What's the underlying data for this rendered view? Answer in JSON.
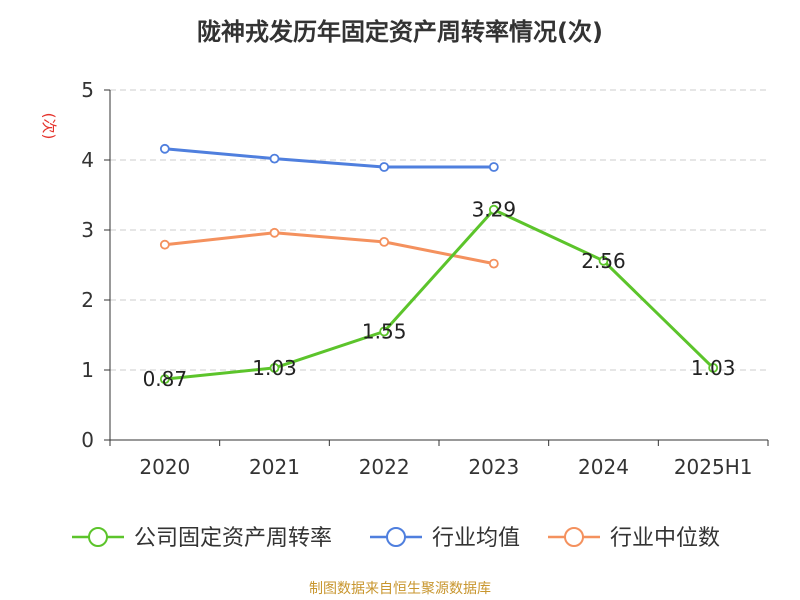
{
  "title": "陇神戎发历年固定资产周转率情况(次)",
  "source": "制图数据来自恒生聚源数据库",
  "colors": {
    "series_main": "#5cc42b",
    "series_avg": "#4f7fde",
    "series_median": "#f4915e",
    "ylabel": "#e5342d",
    "axis": "#333333",
    "grid": "#cccccc"
  },
  "chart_data": {
    "type": "line",
    "ylabel": "(次)",
    "ylim": [
      0,
      5
    ],
    "yticks": [
      "0",
      "1",
      "2",
      "3",
      "4",
      "5"
    ],
    "categories": [
      "2020",
      "2021",
      "2022",
      "2023",
      "2024",
      "2025H1"
    ],
    "grid": true,
    "legend_position": "bottom",
    "series": [
      {
        "name": "公司固定资产周转率",
        "values": [
          0.87,
          1.03,
          1.55,
          3.29,
          2.56,
          1.03
        ],
        "labels": [
          "0.87",
          "1.03",
          "1.55",
          "3.29",
          "2.56",
          "1.03"
        ],
        "color": "#5cc42b"
      },
      {
        "name": "行业均值",
        "values": [
          4.16,
          4.02,
          3.9,
          3.9,
          null,
          null
        ],
        "color": "#4f7fde"
      },
      {
        "name": "行业中位数",
        "values": [
          2.79,
          2.96,
          2.83,
          2.52,
          null,
          null
        ],
        "color": "#f4915e"
      }
    ]
  }
}
